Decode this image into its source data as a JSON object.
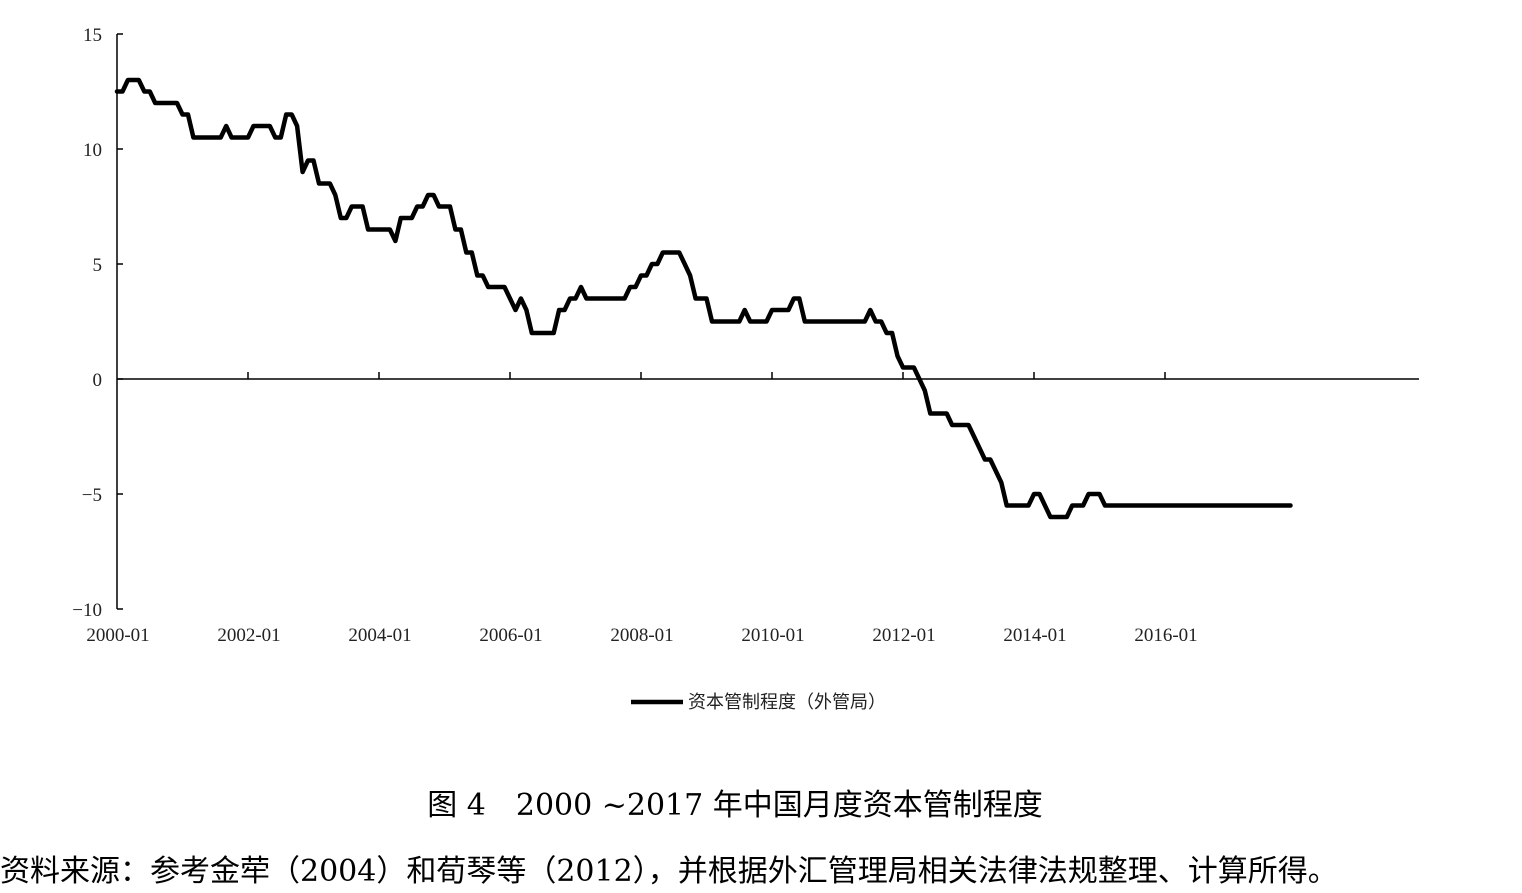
{
  "chart_data": {
    "type": "line",
    "yticks": [
      15,
      10,
      5,
      0,
      -5,
      -10
    ],
    "ytick_labels": [
      "15",
      "10",
      "5",
      "0",
      "−5",
      "−10"
    ],
    "ylim": [
      -10,
      15
    ],
    "x_start": "2000-01",
    "x_end": "2017-12",
    "xticks": [
      "2000-01",
      "2002-01",
      "2004-01",
      "2006-01",
      "2008-01",
      "2010-01",
      "2012-01",
      "2014-01",
      "2016-01"
    ],
    "grid": false,
    "legend_position": "bottom-center",
    "series": [
      {
        "name": "资本管制程度（外管局）",
        "color": "#000000",
        "points": [
          [
            "2000-01",
            12.5
          ],
          [
            "2000-02",
            12.5
          ],
          [
            "2000-03",
            13
          ],
          [
            "2000-05",
            13
          ],
          [
            "2000-06",
            12.5
          ],
          [
            "2000-07",
            12.5
          ],
          [
            "2000-08",
            12
          ],
          [
            "2000-12",
            12
          ],
          [
            "2001-01",
            11.5
          ],
          [
            "2001-02",
            11.5
          ],
          [
            "2001-03",
            10.5
          ],
          [
            "2001-08",
            10.5
          ],
          [
            "2001-09",
            11
          ],
          [
            "2001-10",
            10.5
          ],
          [
            "2002-01",
            10.5
          ],
          [
            "2002-02",
            11
          ],
          [
            "2002-05",
            11
          ],
          [
            "2002-06",
            10.5
          ],
          [
            "2002-07",
            10.5
          ],
          [
            "2002-08",
            11.5
          ],
          [
            "2002-09",
            11.5
          ],
          [
            "2002-10",
            11
          ],
          [
            "2002-11",
            9
          ],
          [
            "2002-12",
            9.5
          ],
          [
            "2003-01",
            9.5
          ],
          [
            "2003-02",
            8.5
          ],
          [
            "2003-04",
            8.5
          ],
          [
            "2003-05",
            8
          ],
          [
            "2003-06",
            7
          ],
          [
            "2003-07",
            7
          ],
          [
            "2003-08",
            7.5
          ],
          [
            "2003-10",
            7.5
          ],
          [
            "2003-11",
            6.5
          ],
          [
            "2004-03",
            6.5
          ],
          [
            "2004-04",
            6
          ],
          [
            "2004-05",
            7
          ],
          [
            "2004-07",
            7
          ],
          [
            "2004-08",
            7.5
          ],
          [
            "2004-09",
            7.5
          ],
          [
            "2004-10",
            8
          ],
          [
            "2004-11",
            8
          ],
          [
            "2004-12",
            7.5
          ],
          [
            "2005-02",
            7.5
          ],
          [
            "2005-03",
            6.5
          ],
          [
            "2005-04",
            6.5
          ],
          [
            "2005-05",
            5.5
          ],
          [
            "2005-06",
            5.5
          ],
          [
            "2005-07",
            4.5
          ],
          [
            "2005-08",
            4.5
          ],
          [
            "2005-09",
            4
          ],
          [
            "2005-12",
            4
          ],
          [
            "2006-01",
            3.5
          ],
          [
            "2006-02",
            3
          ],
          [
            "2006-03",
            3.5
          ],
          [
            "2006-04",
            3
          ],
          [
            "2006-05",
            2
          ],
          [
            "2006-09",
            2
          ],
          [
            "2006-10",
            3
          ],
          [
            "2006-11",
            3
          ],
          [
            "2006-12",
            3.5
          ],
          [
            "2007-01",
            3.5
          ],
          [
            "2007-02",
            4
          ],
          [
            "2007-03",
            3.5
          ],
          [
            "2007-10",
            3.5
          ],
          [
            "2007-11",
            4
          ],
          [
            "2007-12",
            4
          ],
          [
            "2008-01",
            4.5
          ],
          [
            "2008-02",
            4.5
          ],
          [
            "2008-03",
            5
          ],
          [
            "2008-04",
            5
          ],
          [
            "2008-05",
            5.5
          ],
          [
            "2008-08",
            5.5
          ],
          [
            "2008-09",
            5
          ],
          [
            "2008-10",
            4.5
          ],
          [
            "2008-11",
            3.5
          ],
          [
            "2008-12",
            3.5
          ],
          [
            "2009-01",
            3.5
          ],
          [
            "2009-02",
            2.5
          ],
          [
            "2009-07",
            2.5
          ],
          [
            "2009-08",
            3
          ],
          [
            "2009-09",
            2.5
          ],
          [
            "2009-12",
            2.5
          ],
          [
            "2010-01",
            3
          ],
          [
            "2010-04",
            3
          ],
          [
            "2010-05",
            3.5
          ],
          [
            "2010-06",
            3.5
          ],
          [
            "2010-07",
            2.5
          ],
          [
            "2011-06",
            2.5
          ],
          [
            "2011-07",
            3
          ],
          [
            "2011-08",
            2.5
          ],
          [
            "2011-09",
            2.5
          ],
          [
            "2011-10",
            2
          ],
          [
            "2011-11",
            2
          ],
          [
            "2011-12",
            1
          ],
          [
            "2012-01",
            0.5
          ],
          [
            "2012-03",
            0.5
          ],
          [
            "2012-05",
            -0.5
          ],
          [
            "2012-06",
            -1.5
          ],
          [
            "2012-09",
            -1.5
          ],
          [
            "2012-10",
            -2
          ],
          [
            "2013-01",
            -2
          ],
          [
            "2013-02",
            -2.5
          ],
          [
            "2013-04",
            -3.5
          ],
          [
            "2013-05",
            -3.5
          ],
          [
            "2013-06",
            -4
          ],
          [
            "2013-07",
            -4.5
          ],
          [
            "2013-08",
            -5.5
          ],
          [
            "2013-12",
            -5.5
          ],
          [
            "2014-01",
            -5
          ],
          [
            "2014-02",
            -5
          ],
          [
            "2014-04",
            -6
          ],
          [
            "2014-07",
            -6
          ],
          [
            "2014-08",
            -5.5
          ],
          [
            "2014-10",
            -5.5
          ],
          [
            "2014-11",
            -5
          ],
          [
            "2015-01",
            -5
          ],
          [
            "2015-02",
            -5.5
          ],
          [
            "2017-12",
            -5.5
          ]
        ]
      }
    ]
  },
  "figure": {
    "caption": "图 4　2000 ~2017 年中国月度资本管制程度",
    "source": "资料来源：参考金荦（2004）和荀琴等（2012），并根据外汇管理局相关法律法规整理、计算所得。"
  }
}
